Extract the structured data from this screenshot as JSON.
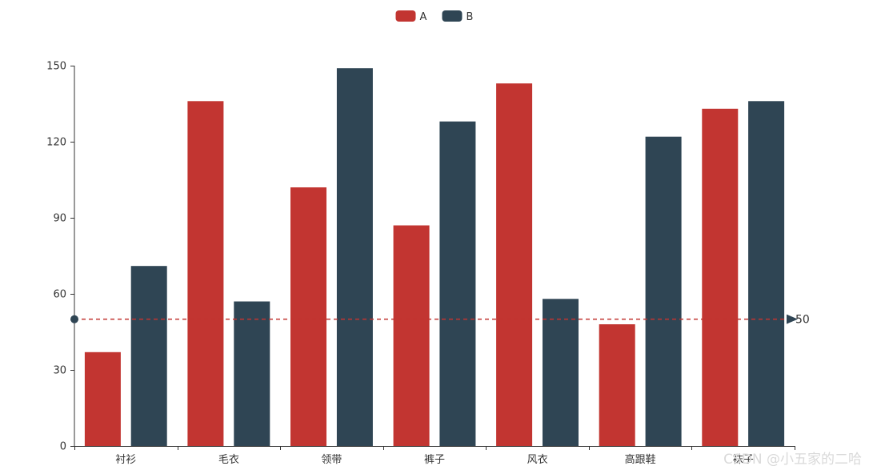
{
  "chart_data": {
    "type": "bar",
    "categories": [
      "衬衫",
      "毛衣",
      "领带",
      "裤子",
      "风衣",
      "高跟鞋",
      "袜子"
    ],
    "series": [
      {
        "name": "A",
        "color": "#c23531",
        "values": [
          37,
          136,
          102,
          87,
          143,
          48,
          133
        ]
      },
      {
        "name": "B",
        "color": "#2f4554",
        "values": [
          71,
          57,
          149,
          128,
          58,
          122,
          136
        ]
      }
    ],
    "yticks": [
      0,
      30,
      60,
      90,
      120,
      150
    ],
    "ylim": [
      0,
      150
    ],
    "legend_position": "top-center",
    "mark_line": {
      "value": 50,
      "label": "50",
      "color": "#2f4554"
    }
  },
  "watermark": "CSDN @小五家的二哈"
}
